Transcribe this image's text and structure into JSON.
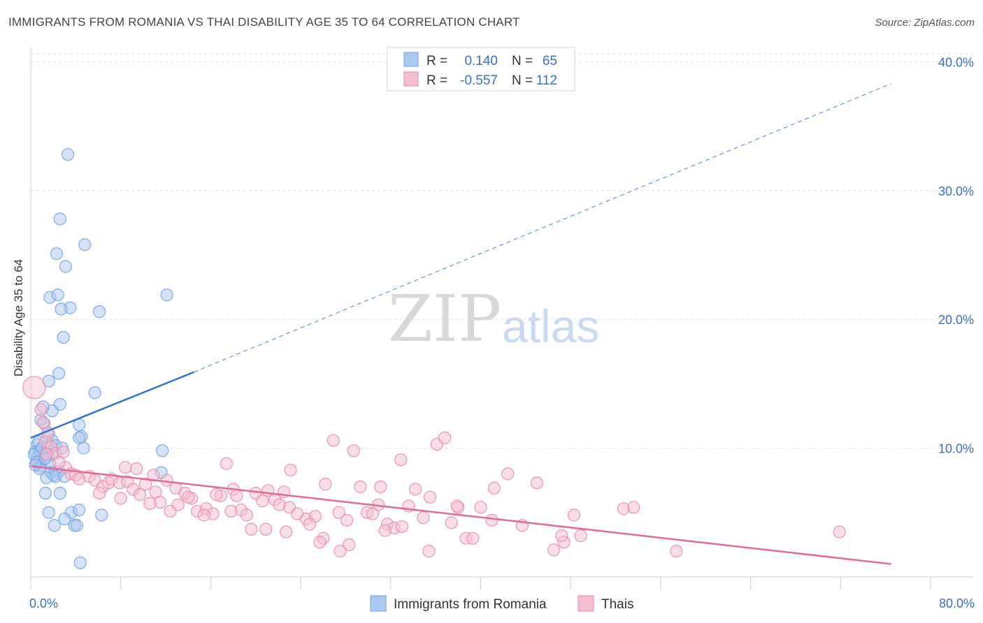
{
  "title": "IMMIGRANTS FROM ROMANIA VS THAI DISABILITY AGE 35 TO 64 CORRELATION CHART",
  "source": "Source: ZipAtlas.com",
  "watermark": {
    "zip": "ZIP",
    "atlas": "atlas"
  },
  "colors": {
    "blue": "#6fa3e6",
    "blue_fill": "#aac8f0",
    "blue_line": "#2f73d3",
    "pink": "#e98aaa",
    "pink_fill": "#f5bdd0",
    "pink_line": "#e26a94",
    "axis_text": "#3a6fc4",
    "grid": "#dddddd"
  },
  "legend": {
    "rows": [
      {
        "r_label": "R =",
        "r_value": "0.140",
        "n_label": "N =",
        "n_value": "65"
      },
      {
        "r_label": "R =",
        "r_value": "-0.557",
        "n_label": "N =",
        "n_value": "112"
      }
    ]
  },
  "chart_data": {
    "type": "scatter",
    "xlabel": "",
    "ylabel": "Disability Age 35 to 64",
    "xlim": [
      0,
      80
    ],
    "ylim": [
      0,
      41
    ],
    "x_tick_labels": [
      "0.0%",
      "80.0%"
    ],
    "y_ticks": [
      10,
      20,
      30,
      40
    ],
    "y_tick_labels": [
      "10.0%",
      "20.0%",
      "30.0%",
      "40.0%"
    ],
    "legend_position": "top-center",
    "grid": true,
    "series": [
      {
        "name": "Immigrants from Romania",
        "color": "blue",
        "trend": {
          "x_start": 0,
          "y_start": 10.8,
          "x_solid_end": 14.5,
          "y_solid_end": 15.9,
          "x_end": 76.5,
          "y_end": 38.3
        },
        "points": [
          [
            3.3,
            32.8
          ],
          [
            2.6,
            27.8
          ],
          [
            4.8,
            25.8
          ],
          [
            2.3,
            25.1
          ],
          [
            3.1,
            24.1
          ],
          [
            1.7,
            21.7
          ],
          [
            2.4,
            21.9
          ],
          [
            3.5,
            20.9
          ],
          [
            2.7,
            20.8
          ],
          [
            6.1,
            20.6
          ],
          [
            12.1,
            21.9
          ],
          [
            2.9,
            18.6
          ],
          [
            2.5,
            15.8
          ],
          [
            1.6,
            15.2
          ],
          [
            5.7,
            14.3
          ],
          [
            2.6,
            13.4
          ],
          [
            1.9,
            12.9
          ],
          [
            1.1,
            13.2
          ],
          [
            4.3,
            11.8
          ],
          [
            1.2,
            11.9
          ],
          [
            0.9,
            12.2
          ],
          [
            4.5,
            10.9
          ],
          [
            4.3,
            10.8
          ],
          [
            1.6,
            11.1
          ],
          [
            0.6,
            10.3
          ],
          [
            0.7,
            10.5
          ],
          [
            1.9,
            10.6
          ],
          [
            2.2,
            10.2
          ],
          [
            4.7,
            10.0
          ],
          [
            0.4,
            9.7
          ],
          [
            0.8,
            9.8
          ],
          [
            1.4,
            9.6
          ],
          [
            1.9,
            9.5
          ],
          [
            0.6,
            9.3
          ],
          [
            1.1,
            9.1
          ],
          [
            0.6,
            9.0
          ],
          [
            0.3,
            9.5
          ],
          [
            0.5,
            8.9
          ],
          [
            0.9,
            8.6
          ],
          [
            1.7,
            8.8
          ],
          [
            0.8,
            8.4
          ],
          [
            1.8,
            8.1
          ],
          [
            2.5,
            8.2
          ],
          [
            11.7,
            9.8
          ],
          [
            2.0,
            7.9
          ],
          [
            2.2,
            7.8
          ],
          [
            3.0,
            7.8
          ],
          [
            1.4,
            7.7
          ],
          [
            11.6,
            8.1
          ],
          [
            1.3,
            6.5
          ],
          [
            2.6,
            6.5
          ],
          [
            1.6,
            5.0
          ],
          [
            3.6,
            5.0
          ],
          [
            4.3,
            5.2
          ],
          [
            6.3,
            4.8
          ],
          [
            3.0,
            4.5
          ],
          [
            2.1,
            4.0
          ],
          [
            3.9,
            4.0
          ],
          [
            4.1,
            4.0
          ],
          [
            4.4,
            1.1
          ],
          [
            1.0,
            10.0
          ],
          [
            1.5,
            10.1
          ],
          [
            0.4,
            8.7
          ],
          [
            2.8,
            10.0
          ],
          [
            1.3,
            9.2
          ]
        ]
      },
      {
        "name": "Thais",
        "color": "pink",
        "trend": {
          "x_start": 0,
          "y_start": 8.6,
          "x_end": 76.5,
          "y_end": 1.0
        },
        "points": [
          [
            0.3,
            14.7
          ],
          [
            0.9,
            13.0
          ],
          [
            1.1,
            12.0
          ],
          [
            1.5,
            11.2
          ],
          [
            1.3,
            10.5
          ],
          [
            1.8,
            10.1
          ],
          [
            2.2,
            9.6
          ],
          [
            2.9,
            9.7
          ],
          [
            1.4,
            9.5
          ],
          [
            3.1,
            8.5
          ],
          [
            2.5,
            8.9
          ],
          [
            3.6,
            8.0
          ],
          [
            4.0,
            7.9
          ],
          [
            4.3,
            7.6
          ],
          [
            5.2,
            7.8
          ],
          [
            5.7,
            7.5
          ],
          [
            6.4,
            7.0
          ],
          [
            6.9,
            7.3
          ],
          [
            7.2,
            7.6
          ],
          [
            7.9,
            7.3
          ],
          [
            6.1,
            6.5
          ],
          [
            8.4,
            8.5
          ],
          [
            9.4,
            8.4
          ],
          [
            8.6,
            7.4
          ],
          [
            9.1,
            6.8
          ],
          [
            10.2,
            7.2
          ],
          [
            11.1,
            6.6
          ],
          [
            12.1,
            7.5
          ],
          [
            12.9,
            6.9
          ],
          [
            13.7,
            6.5
          ],
          [
            11.5,
            5.8
          ],
          [
            10.6,
            5.7
          ],
          [
            12.4,
            5.1
          ],
          [
            13.1,
            5.6
          ],
          [
            14.3,
            6.1
          ],
          [
            14.8,
            5.1
          ],
          [
            15.6,
            5.3
          ],
          [
            16.2,
            4.9
          ],
          [
            17.4,
            8.8
          ],
          [
            16.9,
            6.3
          ],
          [
            18.0,
            6.8
          ],
          [
            18.7,
            5.2
          ],
          [
            19.2,
            4.8
          ],
          [
            20.0,
            6.5
          ],
          [
            20.6,
            5.9
          ],
          [
            21.1,
            6.7
          ],
          [
            21.7,
            6.0
          ],
          [
            22.1,
            5.6
          ],
          [
            23.0,
            5.4
          ],
          [
            23.7,
            4.9
          ],
          [
            24.5,
            4.5
          ],
          [
            25.3,
            4.7
          ],
          [
            23.1,
            8.3
          ],
          [
            26.2,
            7.2
          ],
          [
            26.9,
            10.6
          ],
          [
            27.4,
            5.0
          ],
          [
            28.1,
            4.4
          ],
          [
            28.7,
            9.8
          ],
          [
            29.3,
            7.0
          ],
          [
            29.9,
            5.0
          ],
          [
            30.4,
            4.9
          ],
          [
            31.1,
            7.0
          ],
          [
            31.7,
            4.1
          ],
          [
            32.3,
            3.8
          ],
          [
            32.9,
            9.1
          ],
          [
            33.6,
            5.5
          ],
          [
            34.2,
            6.8
          ],
          [
            34.9,
            4.6
          ],
          [
            35.5,
            6.2
          ],
          [
            36.1,
            10.3
          ],
          [
            36.8,
            10.8
          ],
          [
            37.4,
            4.2
          ],
          [
            38.0,
            5.4
          ],
          [
            38.7,
            3.0
          ],
          [
            39.3,
            3.0
          ],
          [
            40.0,
            5.4
          ],
          [
            37.9,
            5.5
          ],
          [
            41.2,
            6.9
          ],
          [
            20.9,
            3.7
          ],
          [
            22.7,
            3.5
          ],
          [
            24.8,
            4.1
          ],
          [
            26.0,
            3.0
          ],
          [
            28.3,
            2.5
          ],
          [
            33.0,
            3.9
          ],
          [
            35.4,
            2.0
          ],
          [
            25.7,
            2.7
          ],
          [
            27.5,
            2.0
          ],
          [
            41.0,
            4.4
          ],
          [
            42.4,
            8.0
          ],
          [
            43.7,
            4.0
          ],
          [
            45.0,
            7.3
          ],
          [
            46.5,
            2.1
          ],
          [
            47.4,
            2.7
          ],
          [
            48.3,
            4.8
          ],
          [
            47.2,
            3.2
          ],
          [
            48.9,
            3.2
          ],
          [
            52.7,
            5.3
          ],
          [
            53.6,
            5.4
          ],
          [
            57.4,
            2.0
          ],
          [
            71.9,
            3.5
          ],
          [
            15.4,
            4.8
          ],
          [
            17.8,
            5.1
          ],
          [
            19.6,
            3.7
          ],
          [
            31.5,
            3.6
          ],
          [
            30.9,
            5.6
          ],
          [
            8.0,
            6.1
          ],
          [
            9.7,
            6.4
          ],
          [
            10.9,
            7.9
          ],
          [
            14.0,
            6.2
          ],
          [
            16.5,
            6.4
          ],
          [
            18.3,
            6.3
          ],
          [
            22.5,
            6.6
          ]
        ]
      }
    ]
  },
  "bottom_legend": [
    {
      "label": "Immigrants from Romania",
      "color": "blue"
    },
    {
      "label": "Thais",
      "color": "pink"
    }
  ]
}
